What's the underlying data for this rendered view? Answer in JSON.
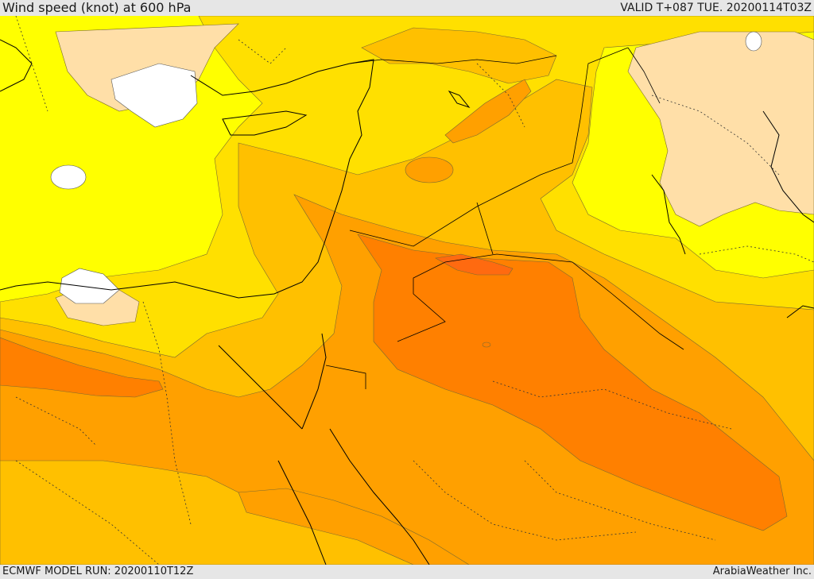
{
  "header": {
    "title": "Wind speed (knot) at 600 hPa",
    "valid": "VALID T+087 TUE. 20200114T03Z"
  },
  "footer": {
    "model_run": "ECMWF MODEL RUN: 20200110T12Z",
    "credit": "ArabiaWeather Inc."
  },
  "colors": {
    "lt10": "#ffffff",
    "b10_20": "#ffdfa8",
    "b20_30": "#ffff00",
    "b30_40": "#ffe000",
    "b40_50": "#ffc000",
    "b50_60": "#ffa000",
    "b60_70": "#ff8000",
    "b70_80": "#ff6a10"
  }
}
